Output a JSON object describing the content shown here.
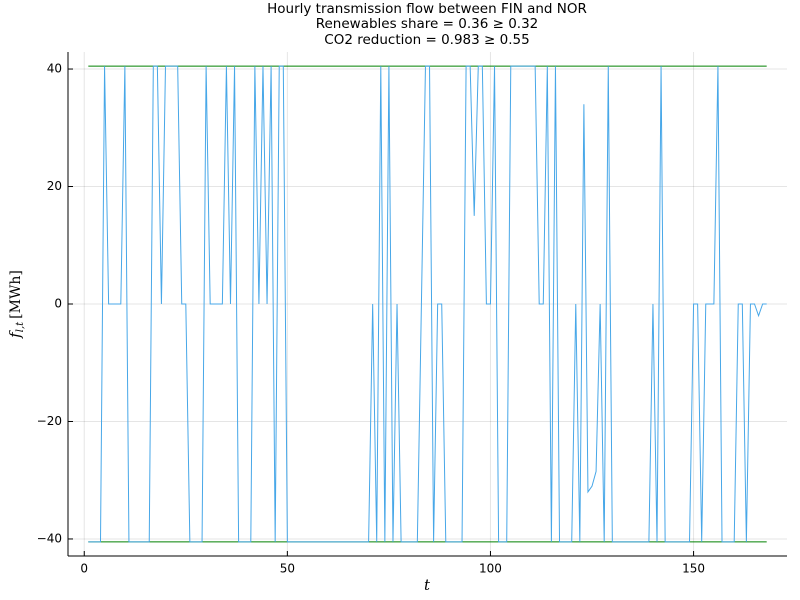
{
  "chart_data": {
    "type": "line",
    "title": [
      "Hourly transmission flow between FIN and NOR",
      "Renewables share = 0.36 ≥ 0.32",
      "CO2 reduction = 0.983 ≥ 0.55"
    ],
    "xlabel": "t",
    "ylabel": {
      "symbol": "f",
      "subscript": "l,t",
      "unit": "[MWh]"
    },
    "x": [
      1,
      2,
      3,
      4,
      5,
      6,
      7,
      8,
      9,
      10,
      11,
      12,
      13,
      14,
      15,
      16,
      17,
      18,
      19,
      20,
      21,
      22,
      23,
      24,
      25,
      26,
      27,
      28,
      29,
      30,
      31,
      32,
      33,
      34,
      35,
      36,
      37,
      38,
      39,
      40,
      41,
      42,
      43,
      44,
      45,
      46,
      47,
      48,
      49,
      50,
      51,
      52,
      53,
      54,
      55,
      56,
      57,
      58,
      59,
      60,
      61,
      62,
      63,
      64,
      65,
      66,
      67,
      68,
      69,
      70,
      71,
      72,
      73,
      74,
      75,
      76,
      77,
      78,
      79,
      80,
      81,
      82,
      83,
      84,
      85,
      86,
      87,
      88,
      89,
      90,
      91,
      92,
      93,
      94,
      95,
      96,
      97,
      98,
      99,
      100,
      101,
      102,
      103,
      104,
      105,
      106,
      107,
      108,
      109,
      110,
      111,
      112,
      113,
      114,
      115,
      116,
      117,
      118,
      119,
      120,
      121,
      122,
      123,
      124,
      125,
      126,
      127,
      128,
      129,
      130,
      131,
      132,
      133,
      134,
      135,
      136,
      137,
      138,
      139,
      140,
      141,
      142,
      143,
      144,
      145,
      146,
      147,
      148,
      149,
      150,
      151,
      152,
      153,
      154,
      155,
      156,
      157,
      158,
      159,
      160,
      161,
      162,
      163,
      164,
      165,
      166,
      167,
      168
    ],
    "series": [
      {
        "color": "#47a7e8",
        "values": [
          -40.5,
          -40.5,
          -40.5,
          -40.5,
          40.5,
          0,
          0,
          0,
          0,
          40.5,
          -40.5,
          -40.5,
          -40.5,
          -40.5,
          -40.5,
          -40.5,
          40.5,
          40.5,
          0,
          40.5,
          40.5,
          40.5,
          40.5,
          0,
          0,
          -40.5,
          -40.5,
          -40.5,
          -40.5,
          40.5,
          0,
          0,
          0,
          0,
          40.5,
          0,
          40.5,
          -40.5,
          -40.5,
          -40.5,
          -40.5,
          40.5,
          0,
          40.5,
          0,
          40.5,
          -40.5,
          40.5,
          40.5,
          -40.5,
          -40.5,
          -40.5,
          -40.5,
          -40.5,
          -40.5,
          -40.5,
          -40.5,
          -40.5,
          -40.5,
          -40.5,
          -40.5,
          -40.5,
          -40.5,
          -40.5,
          -40.5,
          -40.5,
          -40.5,
          -40.5,
          -40.5,
          -40.5,
          0,
          -40.5,
          40.5,
          -40.5,
          40.5,
          -40.5,
          0,
          -40.5,
          -40.5,
          -40.5,
          -40.5,
          -40.5,
          0,
          40.5,
          40.5,
          -40.5,
          0,
          0,
          -40.5,
          -40.5,
          -40.5,
          -40.5,
          -40.5,
          40.5,
          40.5,
          15,
          40.5,
          40.5,
          0,
          0,
          40.5,
          -40.5,
          -40.5,
          -40.5,
          40.5,
          40.5,
          40.5,
          40.5,
          40.5,
          40.5,
          40.5,
          0,
          0,
          40.5,
          -40.5,
          40.5,
          -40.5,
          -40.5,
          -40.5,
          -40.5,
          0,
          -40.5,
          34,
          -32,
          -31,
          -28.5,
          0,
          -40.5,
          40.5,
          -40.5,
          -40.5,
          -40.5,
          -40.5,
          -40.5,
          -40.5,
          -40.5,
          -40.5,
          -40.5,
          -40.5,
          0,
          -40.5,
          40.5,
          -40.5,
          -40.5,
          -40.5,
          -40.5,
          -40.5,
          -40.5,
          -40.5,
          0,
          0,
          -40.5,
          0,
          0,
          0,
          40.5,
          -40.5,
          -40.5,
          -40.5,
          -40.5,
          0,
          0,
          -40.5,
          0,
          0,
          -2,
          0,
          0
        ]
      }
    ],
    "capacity_lines": {
      "color": "#008000",
      "x": [
        1,
        168
      ],
      "values": [
        40.5,
        -40.5
      ]
    },
    "xlim": [
      -4,
      173
    ],
    "ylim": [
      -42.9,
      42.9
    ],
    "xticks": [
      0,
      50,
      100,
      150
    ],
    "yticks": [
      {
        "value": -40,
        "label": "−40"
      },
      {
        "value": -20,
        "label": "−20"
      },
      0,
      20,
      40
    ],
    "grid": true
  }
}
